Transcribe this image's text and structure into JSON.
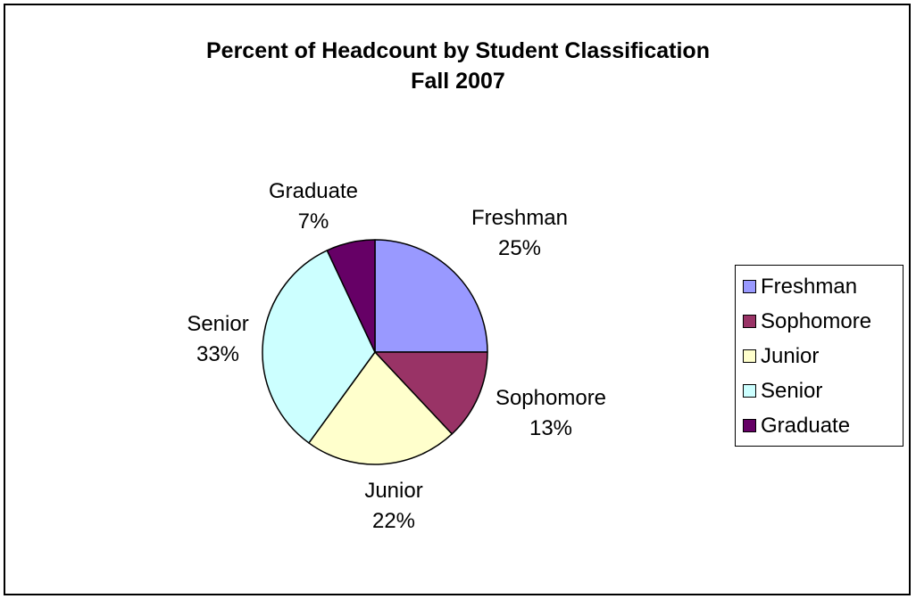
{
  "chart_data": {
    "type": "pie",
    "title": "Percent of Headcount by Student Classification",
    "subtitle": "Fall 2007",
    "slices": [
      {
        "label": "Freshman",
        "value": 25,
        "pct_label": "25%",
        "color": "#9999ff"
      },
      {
        "label": "Sophomore",
        "value": 13,
        "pct_label": "13%",
        "color": "#993366"
      },
      {
        "label": "Junior",
        "value": 22,
        "pct_label": "22%",
        "color": "#ffffcc"
      },
      {
        "label": "Senior",
        "value": 33,
        "pct_label": "33%",
        "color": "#ccffff"
      },
      {
        "label": "Graduate",
        "value": 7,
        "pct_label": "7%",
        "color": "#660066"
      }
    ],
    "start_angle_deg": 0,
    "direction": "clockwise",
    "legend": {
      "placement": "right",
      "items": [
        "Freshman",
        "Sophomore",
        "Junior",
        "Senior",
        "Graduate"
      ]
    }
  }
}
